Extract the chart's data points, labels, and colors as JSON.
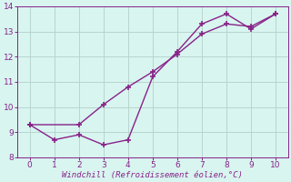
{
  "line1_x": [
    0,
    1,
    2,
    3,
    4,
    5,
    6,
    7,
    8,
    9,
    10
  ],
  "line1_y": [
    9.3,
    8.7,
    8.9,
    8.5,
    8.7,
    11.2,
    12.2,
    13.3,
    13.7,
    13.1,
    13.7
  ],
  "line2_x": [
    0,
    2,
    3,
    4,
    5,
    6,
    7,
    8,
    9,
    10
  ],
  "line2_y": [
    9.3,
    9.3,
    10.1,
    10.8,
    11.4,
    12.1,
    12.9,
    13.3,
    13.2,
    13.7
  ],
  "line_color": "#882288",
  "bg_color": "#d8f5f0",
  "grid_color": "#b8d4d0",
  "xlabel": "Windchill (Refroidissement éolien,°C)",
  "xlabel_color": "#882288",
  "xlim": [
    -0.5,
    10.5
  ],
  "ylim": [
    8,
    14
  ],
  "xticks": [
    0,
    1,
    2,
    3,
    4,
    5,
    6,
    7,
    8,
    9,
    10
  ],
  "yticks": [
    8,
    9,
    10,
    11,
    12,
    13,
    14
  ],
  "tick_color": "#882288",
  "markersize": 4,
  "linewidth": 1.0
}
